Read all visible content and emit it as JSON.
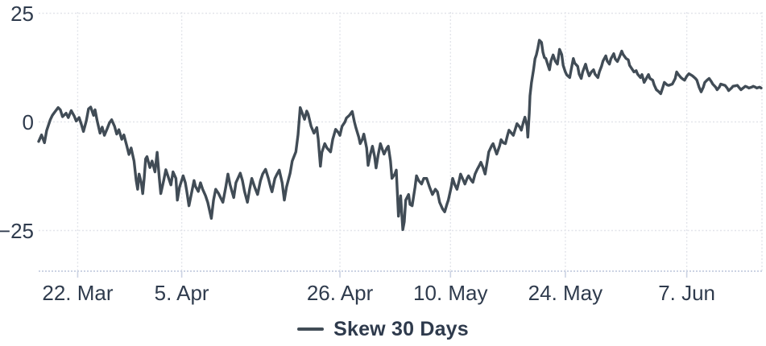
{
  "chart": {
    "legend": {
      "label": "Skew 30 Days",
      "marker_color": "#414c56"
    },
    "colors": {
      "background": "#ffffff",
      "line": "#414c56",
      "text": "#2f3b4d",
      "grid": "#e2e4ea",
      "axis": "#ccd3e3",
      "tick": "#ccd3e3"
    }
  },
  "chart_data": {
    "type": "line",
    "title": "",
    "xlabel": "",
    "ylabel": "",
    "legend_position": "bottom-center",
    "grid_style": "dotted",
    "series_names": [
      "Skew 30 Days"
    ],
    "y_ticks": [
      {
        "label": "25",
        "value": 25
      },
      {
        "label": "0",
        "value": 0
      },
      {
        "label": "−25",
        "value": -25
      }
    ],
    "ylim": [
      -34,
      25
    ],
    "x_ticks": [
      {
        "label": "22. Mar",
        "pos": 54
      },
      {
        "label": "5. Apr",
        "pos": 198
      },
      {
        "label": "26. Apr",
        "pos": 417
      },
      {
        "label": "10. May",
        "pos": 570
      },
      {
        "label": "24. May",
        "pos": 729
      },
      {
        "label": "7. Jun",
        "pos": 897
      }
    ],
    "points_x_unit": "permille of plotted date range (mid-March to mid-June)",
    "points_y_unit": "skew value",
    "points": [
      [
        0,
        -4.5
      ],
      [
        4,
        -3
      ],
      [
        8,
        -4.8
      ],
      [
        11,
        -2
      ],
      [
        16,
        0.5
      ],
      [
        19,
        1.5
      ],
      [
        22,
        2.2
      ],
      [
        27,
        3.3
      ],
      [
        30,
        2.8
      ],
      [
        33,
        1.2
      ],
      [
        38,
        2
      ],
      [
        41,
        1
      ],
      [
        45,
        2.6
      ],
      [
        49,
        1.4
      ],
      [
        52,
        0.2
      ],
      [
        56,
        1
      ],
      [
        59,
        -0.5
      ],
      [
        62,
        -2.2
      ],
      [
        66,
        0.3
      ],
      [
        69,
        3
      ],
      [
        72,
        3.4
      ],
      [
        76,
        1.5
      ],
      [
        78,
        2.8
      ],
      [
        81,
        0.2
      ],
      [
        85,
        -2.6
      ],
      [
        88,
        -1.2
      ],
      [
        91,
        -3.1
      ],
      [
        95,
        -1.5
      ],
      [
        98,
        -0.2
      ],
      [
        101,
        0.5
      ],
      [
        105,
        -1
      ],
      [
        108,
        -2.8
      ],
      [
        111,
        -1.8
      ],
      [
        115,
        -4
      ],
      [
        118,
        -3
      ],
      [
        122,
        -5.5
      ],
      [
        125,
        -7.5
      ],
      [
        128,
        -6
      ],
      [
        132,
        -9
      ],
      [
        135,
        -13.5
      ],
      [
        137,
        -15.5
      ],
      [
        139,
        -12
      ],
      [
        142,
        -14
      ],
      [
        144,
        -16.5
      ],
      [
        146,
        -13
      ],
      [
        148,
        -8.5
      ],
      [
        150,
        -8
      ],
      [
        154,
        -10.5
      ],
      [
        157,
        -9
      ],
      [
        161,
        -11.5
      ],
      [
        164,
        -7
      ],
      [
        167,
        -13
      ],
      [
        169,
        -16.5
      ],
      [
        173,
        -13.5
      ],
      [
        176,
        -11
      ],
      [
        179,
        -12.5
      ],
      [
        183,
        -14.5
      ],
      [
        186,
        -11.5
      ],
      [
        190,
        -13
      ],
      [
        192,
        -18
      ],
      [
        195,
        -15
      ],
      [
        200,
        -12.4
      ],
      [
        203,
        -14
      ],
      [
        205,
        -16
      ],
      [
        208,
        -19.3
      ],
      [
        212,
        -16
      ],
      [
        215,
        -13.5
      ],
      [
        217,
        -14.8
      ],
      [
        221,
        -16
      ],
      [
        224,
        -14
      ],
      [
        227,
        -15.5
      ],
      [
        231,
        -17
      ],
      [
        234,
        -18.5
      ],
      [
        239,
        -22.2
      ],
      [
        242,
        -18
      ],
      [
        245,
        -15.5
      ],
      [
        249,
        -16.5
      ],
      [
        252,
        -17.5
      ],
      [
        255,
        -18.5
      ],
      [
        259,
        -15
      ],
      [
        262,
        -12
      ],
      [
        265,
        -14.5
      ],
      [
        270,
        -17.4
      ],
      [
        273,
        -14
      ],
      [
        279,
        -11.8
      ],
      [
        282,
        -13.5
      ],
      [
        285,
        -16
      ],
      [
        289,
        -18.5
      ],
      [
        292,
        -15.5
      ],
      [
        295,
        -13
      ],
      [
        299,
        -15
      ],
      [
        303,
        -16.7
      ],
      [
        307,
        -13.5
      ],
      [
        310,
        -12
      ],
      [
        314,
        -10.9
      ],
      [
        318,
        -13
      ],
      [
        321,
        -15
      ],
      [
        323,
        -16.1
      ],
      [
        327,
        -13
      ],
      [
        330,
        -12
      ],
      [
        333,
        -11.1
      ],
      [
        337,
        -14
      ],
      [
        340,
        -18
      ],
      [
        343,
        -15
      ],
      [
        348,
        -11.8
      ],
      [
        351,
        -9
      ],
      [
        356,
        -6.9
      ],
      [
        359,
        -3
      ],
      [
        362,
        3.3
      ],
      [
        366,
        1.5
      ],
      [
        368,
        0.6
      ],
      [
        371,
        2.5
      ],
      [
        373,
        1.8
      ],
      [
        377,
        -1
      ],
      [
        381,
        -2.6
      ],
      [
        385,
        -1.3
      ],
      [
        387,
        -4
      ],
      [
        390,
        -10.2
      ],
      [
        392,
        -7
      ],
      [
        396,
        -5
      ],
      [
        399,
        -6
      ],
      [
        404,
        -6.9
      ],
      [
        407,
        -4
      ],
      [
        411,
        -1.7
      ],
      [
        415,
        -2.5
      ],
      [
        417,
        -3.1
      ],
      [
        420,
        -1
      ],
      [
        424,
        0
      ],
      [
        426,
        0.9
      ],
      [
        430,
        1.5
      ],
      [
        434,
        2.4
      ],
      [
        437,
        0
      ],
      [
        439,
        -1.3
      ],
      [
        443,
        -3.5
      ],
      [
        445,
        -5
      ],
      [
        448,
        -4
      ],
      [
        450,
        -2.8
      ],
      [
        454,
        -6
      ],
      [
        456,
        -10
      ],
      [
        459,
        -7.5
      ],
      [
        462,
        -5.6
      ],
      [
        465,
        -8
      ],
      [
        467,
        -10.6
      ],
      [
        470,
        -7.5
      ],
      [
        473,
        -5
      ],
      [
        476,
        -6.5
      ],
      [
        478,
        -7.4
      ],
      [
        482,
        -6
      ],
      [
        484,
        -5.6
      ],
      [
        487,
        -9
      ],
      [
        489,
        -13
      ],
      [
        493,
        -12
      ],
      [
        495,
        -11.1
      ],
      [
        498,
        -21.7
      ],
      [
        501,
        -17
      ],
      [
        504,
        -24.8
      ],
      [
        506,
        -23
      ],
      [
        508,
        -18
      ],
      [
        512,
        -16.7
      ],
      [
        514,
        -19
      ],
      [
        517,
        -19.3
      ],
      [
        521,
        -15
      ],
      [
        523,
        -12.4
      ],
      [
        526,
        -13.5
      ],
      [
        530,
        -14.3
      ],
      [
        533,
        -13
      ],
      [
        537,
        -13
      ],
      [
        541,
        -15
      ],
      [
        545,
        -16.7
      ],
      [
        549,
        -15.5
      ],
      [
        552,
        -16.1
      ],
      [
        555,
        -18.5
      ],
      [
        559,
        -20
      ],
      [
        562,
        -20.7
      ],
      [
        565,
        -19
      ],
      [
        567,
        -18
      ],
      [
        571,
        -15
      ],
      [
        573,
        -13
      ],
      [
        576,
        -14.5
      ],
      [
        579,
        -15.5
      ],
      [
        582,
        -13.5
      ],
      [
        584,
        -12
      ],
      [
        588,
        -13.5
      ],
      [
        590,
        -14.3
      ],
      [
        593,
        -13
      ],
      [
        595,
        -12.4
      ],
      [
        599,
        -13.5
      ],
      [
        601,
        -13.9
      ],
      [
        604,
        -12
      ],
      [
        607,
        -10.9
      ],
      [
        610,
        -10
      ],
      [
        612,
        -9.3
      ],
      [
        615,
        -10.5
      ],
      [
        618,
        -12
      ],
      [
        621,
        -9
      ],
      [
        623,
        -6.9
      ],
      [
        627,
        -5.5
      ],
      [
        629,
        -5
      ],
      [
        632,
        -6.5
      ],
      [
        634,
        -7.4
      ],
      [
        638,
        -5.5
      ],
      [
        640,
        -4.1
      ],
      [
        643,
        -4.8
      ],
      [
        646,
        -5
      ],
      [
        649,
        -3
      ],
      [
        651,
        -1.9
      ],
      [
        654,
        -2.5
      ],
      [
        657,
        -3.1
      ],
      [
        660,
        -1.5
      ],
      [
        662,
        -0.4
      ],
      [
        666,
        -1.2
      ],
      [
        668,
        -1.9
      ],
      [
        671,
        0
      ],
      [
        673,
        1.1
      ],
      [
        676,
        -1
      ],
      [
        677,
        -3.5
      ],
      [
        679,
        2
      ],
      [
        680,
        6
      ],
      [
        682,
        9
      ],
      [
        685,
        12
      ],
      [
        687,
        14.5
      ],
      [
        689,
        15.5
      ],
      [
        691,
        17
      ],
      [
        693,
        18.8
      ],
      [
        696,
        18.3
      ],
      [
        698,
        16
      ],
      [
        700,
        14.8
      ],
      [
        702,
        14.6
      ],
      [
        705,
        13
      ],
      [
        707,
        12
      ],
      [
        709,
        14
      ],
      [
        712,
        15.4
      ],
      [
        715,
        14
      ],
      [
        718,
        13.3
      ],
      [
        721,
        16.7
      ],
      [
        724,
        15.5
      ],
      [
        726,
        13
      ],
      [
        729,
        11.5
      ],
      [
        731,
        10.8
      ],
      [
        735,
        10.2
      ],
      [
        737,
        12
      ],
      [
        740,
        14.6
      ],
      [
        742,
        13.5
      ],
      [
        746,
        12.8
      ],
      [
        748,
        11
      ],
      [
        751,
        10
      ],
      [
        753,
        11.5
      ],
      [
        757,
        13.3
      ],
      [
        759,
        12
      ],
      [
        762,
        10.6
      ],
      [
        765,
        11.5
      ],
      [
        768,
        12
      ],
      [
        770,
        11
      ],
      [
        774,
        10.2
      ],
      [
        776,
        11.5
      ],
      [
        779,
        12.8
      ],
      [
        781,
        14
      ],
      [
        785,
        15.2
      ],
      [
        787,
        14
      ],
      [
        790,
        13.3
      ],
      [
        792,
        14.5
      ],
      [
        796,
        15.7
      ],
      [
        798,
        14.5
      ],
      [
        801,
        13.9
      ],
      [
        804,
        15
      ],
      [
        807,
        16.3
      ],
      [
        809,
        15.5
      ],
      [
        813,
        14.6
      ],
      [
        816,
        14.3
      ],
      [
        818,
        13
      ],
      [
        822,
        12
      ],
      [
        824,
        11.5
      ],
      [
        827,
        11.8
      ],
      [
        829,
        11
      ],
      [
        833,
        10.2
      ],
      [
        835,
        10.9
      ],
      [
        838,
        9.1
      ],
      [
        841,
        10
      ],
      [
        844,
        10.9
      ],
      [
        846,
        10
      ],
      [
        850,
        9.6
      ],
      [
        852,
        8.5
      ],
      [
        855,
        7.4
      ],
      [
        858,
        7
      ],
      [
        861,
        6.5
      ],
      [
        864,
        8
      ],
      [
        866,
        9.1
      ],
      [
        870,
        8.5
      ],
      [
        872,
        8.4
      ],
      [
        875,
        8.6
      ],
      [
        877,
        8.7
      ],
      [
        881,
        10
      ],
      [
        883,
        11.5
      ],
      [
        886,
        10.8
      ],
      [
        889,
        10.2
      ],
      [
        892,
        9.8
      ],
      [
        894,
        9.6
      ],
      [
        897,
        10.5
      ],
      [
        900,
        11.1
      ],
      [
        903,
        10.8
      ],
      [
        905,
        10.6
      ],
      [
        909,
        10
      ],
      [
        911,
        9.6
      ],
      [
        914,
        8
      ],
      [
        917,
        6.9
      ],
      [
        920,
        8
      ],
      [
        922,
        9.1
      ],
      [
        925,
        9.6
      ],
      [
        928,
        10
      ],
      [
        931,
        9.3
      ],
      [
        933,
        8.7
      ],
      [
        937,
        8
      ],
      [
        939,
        7.4
      ],
      [
        942,
        8
      ],
      [
        944,
        8.7
      ],
      [
        948,
        8.5
      ],
      [
        950,
        8.4
      ],
      [
        953,
        7.8
      ],
      [
        955,
        7.2
      ],
      [
        959,
        7.8
      ],
      [
        961,
        8.2
      ],
      [
        964,
        8.3
      ],
      [
        967,
        8.4
      ],
      [
        970,
        7.8
      ],
      [
        972,
        7.4
      ],
      [
        975,
        7.8
      ],
      [
        978,
        8.2
      ],
      [
        981,
        8
      ],
      [
        983,
        7.8
      ],
      [
        987,
        8
      ],
      [
        989,
        8.2
      ],
      [
        992,
        8
      ],
      [
        994,
        7.8
      ],
      [
        998,
        8
      ],
      [
        1000,
        7.8
      ]
    ]
  }
}
